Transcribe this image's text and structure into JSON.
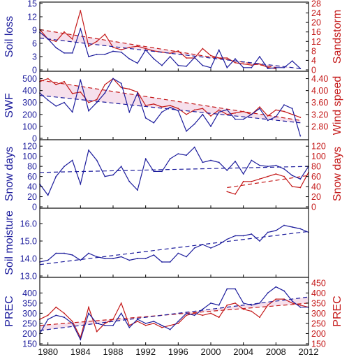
{
  "chart_data": {
    "type": "line",
    "x_ticks": [
      1980,
      1984,
      1988,
      1992,
      1996,
      2000,
      2004,
      2008,
      2012
    ],
    "xlim": [
      1979,
      2012
    ],
    "colors": {
      "left": "#1c1c9c",
      "right": "#c41818",
      "shade": "#efc6dc"
    },
    "panels": [
      {
        "id": "soil-loss",
        "left_label": "Soil loss",
        "right_label": "Sandstorm",
        "left_ylim": [
          0,
          15
        ],
        "left_ticks": [
          "0",
          "3",
          "6",
          "9",
          "12",
          "15"
        ],
        "right_ylim": [
          0,
          28
        ],
        "right_ticks": [
          "0",
          "4",
          "8",
          "12",
          "16",
          "20",
          "24",
          "28"
        ],
        "shade": true,
        "left_series": {
          "x": [
            1979,
            1980,
            1981,
            1982,
            1983,
            1984,
            1985,
            1986,
            1987,
            1988,
            1989,
            1990,
            1991,
            1992,
            1993,
            1994,
            1995,
            1996,
            1997,
            1998,
            1999,
            2000,
            2001,
            2002,
            2003,
            2004,
            2005,
            2006,
            2007,
            2008,
            2009,
            2010,
            2011
          ],
          "y": [
            8.5,
            7.0,
            5.0,
            3.8,
            3.8,
            9.3,
            3.0,
            3.5,
            3.5,
            4.2,
            4.0,
            2.5,
            1.5,
            4.5,
            2.5,
            1.0,
            3.0,
            1.0,
            0.8,
            2.8,
            1.0,
            0.5,
            4.5,
            0.5,
            2.5,
            0.5,
            0.5,
            3.0,
            0.3,
            0.5,
            0.5,
            2.0,
            0.3
          ],
          "trend": [
            [
              1979,
              7.2
            ],
            [
              2011,
              0.3
            ]
          ]
        },
        "right_series": {
          "x": [
            1979,
            1980,
            1981,
            1982,
            1983,
            1984,
            1985,
            1986,
            1987,
            1988,
            1989,
            1990,
            1991,
            1992,
            1993,
            1994,
            1995,
            1996,
            1997,
            1998,
            1999,
            2000,
            2001,
            2002,
            2003,
            2004,
            2005,
            2006,
            2007,
            2008
          ],
          "y": [
            17,
            13,
            12,
            16,
            13,
            25,
            10,
            12,
            15,
            9.5,
            8.5,
            9.5,
            10,
            9,
            8,
            7.5,
            7,
            8,
            5,
            5,
            9,
            6,
            5,
            5,
            3,
            2.5,
            2,
            2.5,
            1,
            0.5
          ],
          "trend": [
            [
              1979,
              17
            ],
            [
              2008,
              1
            ]
          ]
        }
      },
      {
        "id": "swf",
        "left_label": "SWF",
        "right_label": "Wind speed",
        "left_ylim": [
          0,
          550
        ],
        "left_ticks": [
          "0",
          "100",
          "200",
          "300",
          "400",
          "500"
        ],
        "right_ylim": [
          2.4,
          4.6
        ],
        "right_ticks": [
          "2.80",
          "3.20",
          "3.60",
          "4.00",
          "4.40"
        ],
        "shade": true,
        "left_series": {
          "x": [
            1979,
            1980,
            1981,
            1982,
            1983,
            1984,
            1985,
            1986,
            1987,
            1988,
            1989,
            1990,
            1991,
            1992,
            1993,
            1994,
            1995,
            1996,
            1997,
            1998,
            1999,
            2000,
            2001,
            2002,
            2003,
            2004,
            2005,
            2006,
            2007,
            2008,
            2009,
            2010,
            2011
          ],
          "y": [
            380,
            320,
            270,
            300,
            220,
            490,
            230,
            300,
            380,
            500,
            460,
            220,
            380,
            170,
            130,
            220,
            260,
            230,
            60,
            120,
            200,
            100,
            220,
            240,
            160,
            160,
            200,
            250,
            150,
            180,
            280,
            250,
            20
          ],
          "trend": [
            [
              1979,
              360
            ],
            [
              2011,
              130
            ]
          ]
        },
        "right_series": {
          "x": [
            1979,
            1980,
            1981,
            1982,
            1983,
            1984,
            1985,
            1986,
            1987,
            1988,
            1989,
            1990,
            1991,
            1992,
            1993,
            1994,
            1995,
            1996,
            1997,
            1998,
            1999,
            2000,
            2001,
            2002,
            2003,
            2004,
            2005,
            2006,
            2007,
            2008,
            2009,
            2010,
            2011
          ],
          "y": [
            4.3,
            4.4,
            4.2,
            4.3,
            3.9,
            3.95,
            3.6,
            3.7,
            4.2,
            4.4,
            4.1,
            4.05,
            3.95,
            3.5,
            3.55,
            3.45,
            3.5,
            3.4,
            3.2,
            3.35,
            3.4,
            3.15,
            3.35,
            3.2,
            3.25,
            3.3,
            3.2,
            3.45,
            3.15,
            3.35,
            3.3,
            3.2,
            3.1
          ],
          "trend": [
            [
              1979,
              4.35
            ],
            [
              2011,
              3.0
            ]
          ]
        }
      },
      {
        "id": "snow-days",
        "left_label": "Snow days",
        "right_label": "Snow days",
        "left_ylim": [
          0,
          130
        ],
        "left_ticks": [
          "0",
          "20",
          "40",
          "60",
          "80",
          "100",
          "120"
        ],
        "right_ylim": [
          0,
          130
        ],
        "right_ticks": [
          "0",
          "20",
          "40",
          "60",
          "80",
          "100",
          "120"
        ],
        "shade": false,
        "left_series": {
          "x": [
            1979,
            1980,
            1981,
            1982,
            1983,
            1984,
            1985,
            1986,
            1987,
            1988,
            1989,
            1990,
            1991,
            1992,
            1993,
            1994,
            1995,
            1996,
            1997,
            1998,
            1999,
            2000,
            2001,
            2002,
            2003,
            2004,
            2005,
            2006,
            2007,
            2008,
            2009,
            2010,
            2011,
            2012
          ],
          "y": [
            45,
            23,
            60,
            80,
            92,
            45,
            112,
            92,
            60,
            63,
            80,
            50,
            33,
            95,
            70,
            70,
            95,
            105,
            102,
            118,
            88,
            92,
            88,
            72,
            90,
            65,
            92,
            82,
            80,
            82,
            75,
            62,
            55,
            80
          ],
          "trend": [
            [
              1979,
              68
            ],
            [
              2012,
              80
            ]
          ]
        },
        "right_series": {
          "x": [
            2002,
            2003,
            2004,
            2005,
            2006,
            2007,
            2008,
            2009,
            2010,
            2011,
            2012
          ],
          "y": [
            30,
            25,
            50,
            50,
            55,
            60,
            65,
            60,
            40,
            38,
            68
          ],
          "trend": [
            [
              2002,
              38
            ],
            [
              2012,
              62
            ]
          ]
        }
      },
      {
        "id": "soil-moisture",
        "left_label": "Soil moisture",
        "right_label": "",
        "left_ylim": [
          13.0,
          16.8
        ],
        "left_ticks": [
          "13.0",
          "14.0",
          "15.0",
          "16.0"
        ],
        "right_ylim": null,
        "right_ticks": [],
        "shade": false,
        "left_series": {
          "x": [
            1979,
            1980,
            1981,
            1982,
            1983,
            1984,
            1985,
            1986,
            1987,
            1988,
            1989,
            1990,
            1991,
            1992,
            1993,
            1994,
            1995,
            1996,
            1997,
            1998,
            1999,
            2000,
            2001,
            2002,
            2003,
            2004,
            2005,
            2006,
            2007,
            2008,
            2009,
            2010,
            2011,
            2012
          ],
          "y": [
            13.8,
            13.9,
            14.3,
            14.3,
            14.2,
            13.9,
            14.3,
            14.1,
            14.0,
            14.0,
            14.1,
            13.9,
            14.0,
            14.0,
            14.2,
            13.8,
            13.8,
            14.3,
            14.1,
            14.6,
            14.8,
            14.6,
            14.8,
            15.1,
            15.3,
            15.3,
            15.4,
            15.0,
            15.5,
            15.6,
            15.9,
            15.8,
            15.7,
            15.5
          ],
          "trend": [
            [
              1979,
              13.65
            ],
            [
              2012,
              15.55
            ]
          ]
        },
        "right_series": null
      },
      {
        "id": "prec",
        "left_label": "PREC",
        "right_label": "PREC",
        "left_ylim": [
          150,
          470
        ],
        "left_ticks": [
          "150",
          "200",
          "250",
          "300",
          "350",
          "400"
        ],
        "right_ylim": [
          150,
          470
        ],
        "right_ticks": [
          "150",
          "200",
          "250",
          "300",
          "350",
          "400",
          "450"
        ],
        "shade": true,
        "left_series": {
          "x": [
            1979,
            1980,
            1981,
            1982,
            1983,
            1984,
            1985,
            1986,
            1987,
            1988,
            1989,
            1990,
            1991,
            1992,
            1993,
            1994,
            1995,
            1996,
            1997,
            1998,
            1999,
            2000,
            2001,
            2002,
            2003,
            2004,
            2005,
            2006,
            2007,
            2008,
            2009,
            2010,
            2011,
            2012
          ],
          "y": [
            200,
            270,
            290,
            280,
            250,
            170,
            300,
            250,
            240,
            240,
            300,
            230,
            270,
            250,
            260,
            240,
            220,
            260,
            300,
            290,
            320,
            350,
            340,
            420,
            420,
            350,
            340,
            350,
            400,
            430,
            410,
            360,
            330,
            330
          ],
          "trend": [
            [
              1979,
              215
            ],
            [
              2012,
              380
            ]
          ]
        },
        "right_series": {
          "x": [
            1979,
            1980,
            1981,
            1982,
            1983,
            1984,
            1985,
            1986,
            1987,
            1988,
            1989,
            1990,
            1991,
            1992,
            1993,
            1994,
            1995,
            1996,
            1997,
            1998,
            1999,
            2000,
            2001,
            2002,
            2003,
            2004,
            2005,
            2006,
            2007,
            2008,
            2009,
            2010,
            2011,
            2012
          ],
          "y": [
            270,
            290,
            330,
            300,
            260,
            180,
            330,
            210,
            250,
            270,
            350,
            240,
            260,
            240,
            250,
            230,
            240,
            250,
            290,
            300,
            290,
            300,
            280,
            340,
            350,
            320,
            310,
            280,
            340,
            370,
            370,
            350,
            340,
            330
          ],
          "trend": [
            [
              1979,
              240
            ],
            [
              2012,
              350
            ]
          ]
        }
      }
    ]
  }
}
